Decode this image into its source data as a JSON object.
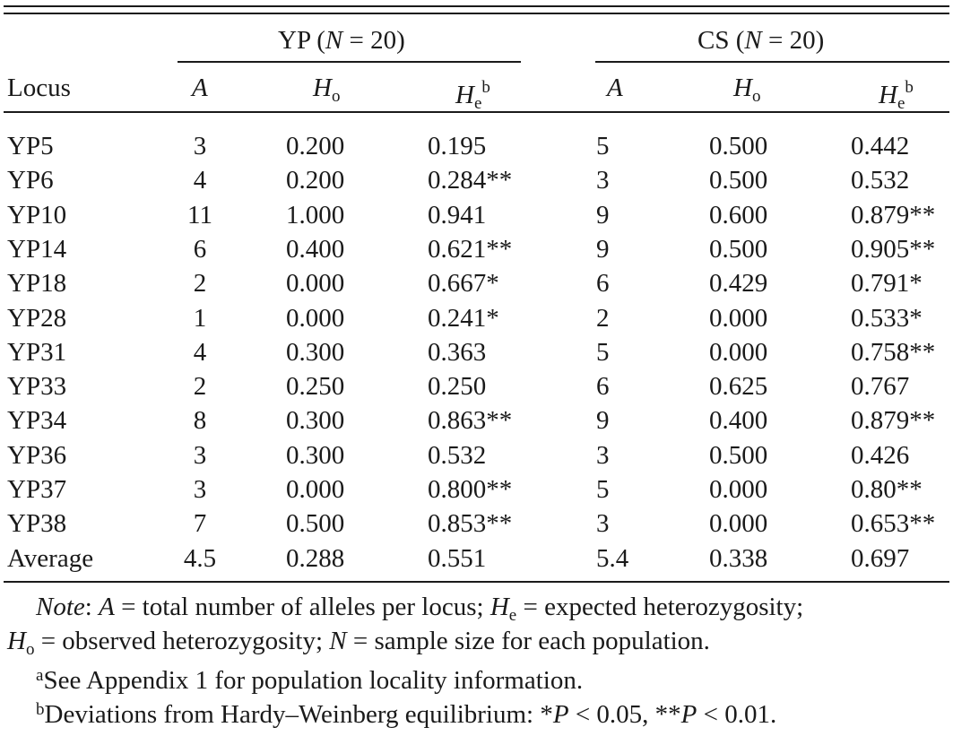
{
  "header": {
    "group1": {
      "label": "YP (",
      "n_var": "N",
      "n_val": " = 20)"
    },
    "group2": {
      "label": "CS (",
      "n_var": "N",
      "n_val": " = 20)"
    },
    "locus": "Locus",
    "a": "A",
    "ho_main": "H",
    "ho_sub": "o",
    "he_main": "H",
    "he_sub": "e",
    "he_sup": "b"
  },
  "rows": [
    {
      "locus": "YP5",
      "ypA": "3",
      "ypHo": "0.200",
      "ypHe": "0.195",
      "csA": "5",
      "csHo": "0.500",
      "csHe": "0.442"
    },
    {
      "locus": "YP6",
      "ypA": "4",
      "ypHo": "0.200",
      "ypHe": "0.284**",
      "csA": "3",
      "csHo": "0.500",
      "csHe": "0.532"
    },
    {
      "locus": "YP10",
      "ypA": "11",
      "ypHo": "1.000",
      "ypHe": "0.941",
      "csA": "9",
      "csHo": "0.600",
      "csHe": "0.879**"
    },
    {
      "locus": "YP14",
      "ypA": "6",
      "ypHo": "0.400",
      "ypHe": "0.621**",
      "csA": "9",
      "csHo": "0.500",
      "csHe": "0.905**"
    },
    {
      "locus": "YP18",
      "ypA": "2",
      "ypHo": "0.000",
      "ypHe": "0.667*",
      "csA": "6",
      "csHo": "0.429",
      "csHe": "0.791*"
    },
    {
      "locus": "YP28",
      "ypA": "1",
      "ypHo": "0.000",
      "ypHe": "0.241*",
      "csA": "2",
      "csHo": "0.000",
      "csHe": "0.533*"
    },
    {
      "locus": "YP31",
      "ypA": "4",
      "ypHo": "0.300",
      "ypHe": "0.363",
      "csA": "5",
      "csHo": "0.000",
      "csHe": "0.758**"
    },
    {
      "locus": "YP33",
      "ypA": "2",
      "ypHo": "0.250",
      "ypHe": "0.250",
      "csA": "6",
      "csHo": "0.625",
      "csHe": "0.767"
    },
    {
      "locus": "YP34",
      "ypA": "8",
      "ypHo": "0.300",
      "ypHe": "0.863**",
      "csA": "9",
      "csHo": "0.400",
      "csHe": "0.879**"
    },
    {
      "locus": "YP36",
      "ypA": "3",
      "ypHo": "0.300",
      "ypHe": "0.532",
      "csA": "3",
      "csHo": "0.500",
      "csHe": "0.426"
    },
    {
      "locus": "YP37",
      "ypA": "3",
      "ypHo": "0.000",
      "ypHe": "0.800**",
      "csA": "5",
      "csHo": "0.000",
      "csHe": "0.80**"
    },
    {
      "locus": "YP38",
      "ypA": "7",
      "ypHo": "0.500",
      "ypHe": "0.853**",
      "csA": "3",
      "csHo": "0.000",
      "csHe": "0.653**"
    },
    {
      "locus": "Average",
      "ypA": "4.5",
      "ypHo": "0.288",
      "ypHe": "0.551",
      "csA": "5.4",
      "csHo": "0.338",
      "csHe": "0.697"
    }
  ],
  "notes": {
    "line1": {
      "note_word": "Note",
      "p1": ": ",
      "a": "A",
      "p2": " = total number of alleles per locus; ",
      "h": "H",
      "e": "e",
      "p3": " = expected heterozygosity;"
    },
    "line2": {
      "h": "H",
      "o": "o",
      "p1": " = observed heterozygosity; ",
      "n": "N",
      "p2": " = sample size for each population."
    },
    "fn_a": {
      "mark": "a",
      "text": "See Appendix 1 for population locality information."
    },
    "fn_b": {
      "mark": "b",
      "t1": "Deviations from Hardy–Weinberg equilibrium: *",
      "p1": "P",
      "t2": " < 0.05, **",
      "p2": "P",
      "t3": " < 0.01."
    }
  }
}
